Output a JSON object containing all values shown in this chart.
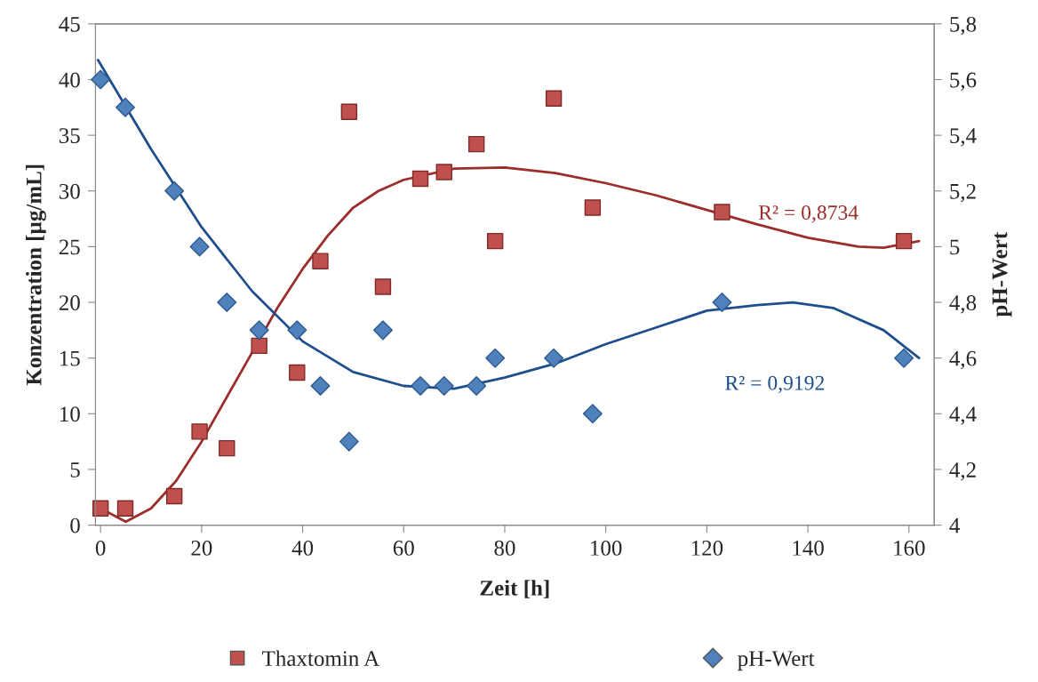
{
  "chart_data": {
    "type": "scatter",
    "xlabel": "Zeit [h]",
    "ylabel": "Konzentration [µg/mL]",
    "y2label": "pH-Wert",
    "xlim": [
      -1,
      165
    ],
    "xticks": [
      0,
      20,
      40,
      60,
      80,
      100,
      120,
      140,
      160
    ],
    "ylim": [
      0,
      45
    ],
    "yticks": [
      0,
      5,
      10,
      15,
      20,
      25,
      30,
      35,
      40,
      45
    ],
    "y2lim": [
      4,
      5.8
    ],
    "y2ticks": [
      {
        "value": 4,
        "label": "4"
      },
      {
        "value": 4.2,
        "label": "4,2"
      },
      {
        "value": 4.4,
        "label": "4,4"
      },
      {
        "value": 4.6,
        "label": "4,6"
      },
      {
        "value": 4.8,
        "label": "4,8"
      },
      {
        "value": 5,
        "label": "5"
      },
      {
        "value": 5.2,
        "label": "5,2"
      },
      {
        "value": 5.4,
        "label": "5,4"
      },
      {
        "value": 5.6,
        "label": "5,6"
      },
      {
        "value": 5.8,
        "label": "5,8"
      }
    ],
    "grid": false,
    "legend": "bottom",
    "series": [
      {
        "name": "Thaxtomin A",
        "marker": "square",
        "color": "#c0504d",
        "x": [
          0,
          4.9,
          14.6,
          19.6,
          25,
          31.4,
          38.9,
          43.5,
          49.2,
          55.9,
          63.3,
          68,
          74.4,
          78.1,
          89.7,
          97.4,
          123,
          159
        ],
        "values": [
          1.5,
          1.5,
          2.6,
          8.4,
          6.9,
          16.1,
          13.7,
          23.7,
          37.1,
          21.4,
          31.1,
          31.7,
          34.2,
          25.5,
          38.3,
          28.5,
          28.1,
          25.5
        ]
      },
      {
        "name": "pH-Wert",
        "marker": "diamond",
        "color": "#4f81bd",
        "axis": "y2",
        "x": [
          0,
          4.9,
          14.6,
          19.6,
          25,
          31.4,
          38.9,
          43.5,
          49.2,
          55.9,
          63.3,
          68,
          74.4,
          78.1,
          89.7,
          97.4,
          123,
          159
        ],
        "values": [
          5.6,
          5.5,
          5.2,
          5.0,
          4.8,
          4.7,
          4.7,
          4.5,
          4.3,
          4.7,
          4.5,
          4.5,
          4.5,
          4.6,
          4.6,
          4.4,
          4.8,
          4.6
        ]
      },
      {
        "type": "line",
        "color": "#9b2d2a",
        "x": [
          0,
          5,
          10,
          15,
          20,
          25,
          30,
          35,
          40,
          45,
          50,
          55,
          60,
          70,
          80,
          90,
          100,
          110,
          120,
          130,
          140,
          150,
          155,
          162
        ],
        "values": [
          1.5,
          0.3,
          1.5,
          4,
          7.5,
          11.5,
          15.5,
          19.5,
          23,
          26,
          28.5,
          30,
          31,
          32,
          32.1,
          31.6,
          30.7,
          29.6,
          28.3,
          27,
          25.8,
          25,
          24.9,
          25.5
        ]
      },
      {
        "type": "line",
        "color": "#1f4e8c",
        "axis": "y2",
        "x": [
          -0.5,
          10,
          20,
          30,
          40,
          50,
          60,
          70,
          80,
          90,
          100,
          110,
          120,
          130,
          137,
          145,
          155,
          162
        ],
        "values": [
          5.67,
          5.35,
          5.07,
          4.84,
          4.66,
          4.55,
          4.5,
          4.49,
          4.53,
          4.58,
          4.65,
          4.71,
          4.77,
          4.79,
          4.8,
          4.78,
          4.7,
          4.6
        ]
      }
    ],
    "annotations": [
      "R² = 0,8734",
      "R² = 0,9192"
    ]
  }
}
